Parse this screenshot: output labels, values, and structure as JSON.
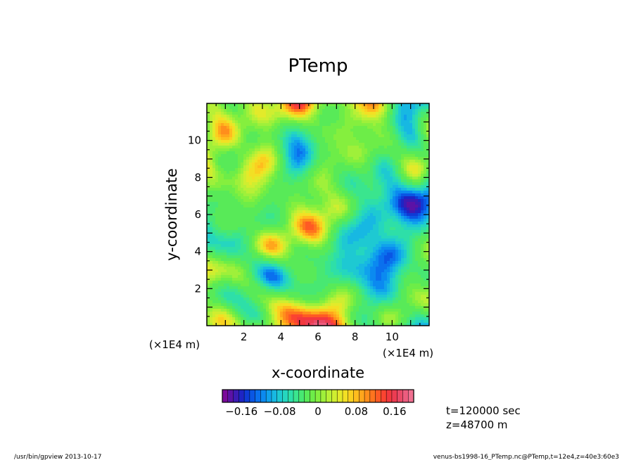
{
  "chart_data": {
    "type": "heatmap",
    "title": "PTemp",
    "xlabel": "x-coordinate",
    "ylabel": "y-coordinate",
    "x_unit": "(×1E4 m)",
    "y_unit": "(×1E4 m)",
    "xlim": [
      0,
      12
    ],
    "ylim": [
      0,
      12
    ],
    "x_ticks": [
      2,
      4,
      6,
      8,
      10
    ],
    "y_ticks": [
      2,
      4,
      6,
      8,
      10
    ],
    "colorbar": {
      "range": [
        -0.2,
        0.2
      ],
      "tick_values": [
        -0.16,
        -0.08,
        0,
        0.08,
        0.16
      ],
      "tick_labels": [
        "−0.16",
        "−0.08",
        "0",
        "0.08",
        "0.16"
      ]
    },
    "info": {
      "time": "t=120000 sec",
      "height": "z=48700 m"
    }
  },
  "footer": {
    "left": "/usr/bin/gpview   2013-10-17",
    "right": "venus-bs1998-16_PTemp.nc@PTemp,t=12e4,z=40e3:60e3"
  },
  "colors": {
    "palette": [
      "#7a0a9a",
      "#5b12a6",
      "#3c1bb4",
      "#1e25c4",
      "#0e3bd6",
      "#0a56e4",
      "#0a70ee",
      "#0b8af0",
      "#10a2ec",
      "#17b8e2",
      "#1ec9d2",
      "#25d6bf",
      "#2edfa8",
      "#3ae58e",
      "#48e872",
      "#58ea58",
      "#6ded48",
      "#85ef3e",
      "#9ff03a",
      "#b8f036",
      "#cfee30",
      "#e3ea2a",
      "#f2e024",
      "#fad020",
      "#ffbc1e",
      "#ffa61c",
      "#ff8e1c",
      "#ff741e",
      "#ff5a24",
      "#fb4430",
      "#f2383e",
      "#ec3c52",
      "#ea4a68",
      "#ec5c7e",
      "#f07090"
    ]
  }
}
